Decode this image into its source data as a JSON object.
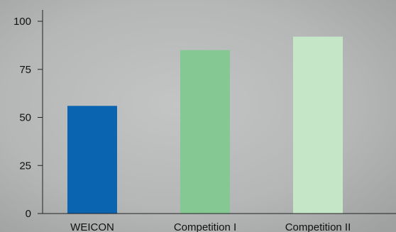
{
  "chart_data": {
    "type": "bar",
    "categories": [
      "WEICON",
      "Competition I",
      "Competition II"
    ],
    "values": [
      56,
      85,
      92
    ],
    "colors": [
      "#0a64b0",
      "#86c894",
      "#c6e6c8"
    ],
    "yticks": [
      0,
      25,
      50,
      75,
      100
    ],
    "ylim": [
      0,
      100
    ],
    "grid": false,
    "title": "",
    "xlabel": "",
    "ylabel": ""
  },
  "colors": {
    "background": "#b9bbbb",
    "axis": "#222222",
    "text": "#111111"
  }
}
